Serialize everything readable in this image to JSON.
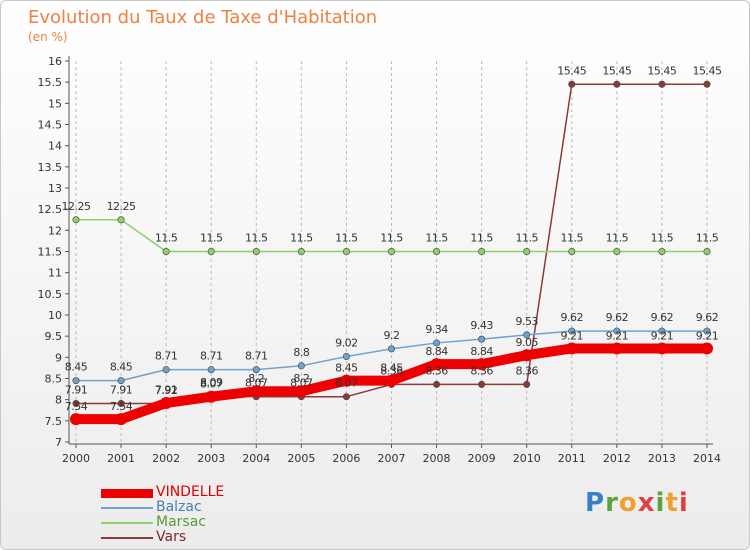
{
  "header": {
    "title": "Evolution du Taux de Taxe d'Habitation",
    "subtitle": "(en %)"
  },
  "colors": {
    "title": "#f08040",
    "axis": "#555555",
    "grid": "#bbbbbb",
    "logo_p": "#3a7fc8",
    "logo_r": "#5aa43a",
    "logo_o": "#f0a030",
    "logo_x": "#e04040",
    "logo_i": "#5aa43a",
    "logo_t": "#f0a030",
    "logo_i2": "#e04040"
  },
  "logo": {
    "letters": [
      "P",
      "r",
      "o",
      "x",
      "i",
      "t",
      "i"
    ]
  },
  "chart_data": {
    "type": "line",
    "title": "Evolution du Taux de Taxe d'Habitation",
    "ylabel": "(en %)",
    "xlabel": "",
    "x": [
      "2000",
      "2001",
      "2002",
      "2003",
      "2004",
      "2005",
      "2006",
      "2007",
      "2008",
      "2009",
      "2010",
      "2011",
      "2012",
      "2013",
      "2014"
    ],
    "ylim": [
      7,
      16
    ],
    "yticks": [
      "7",
      "7.5",
      "8",
      "8.5",
      "9",
      "9.5",
      "10",
      "10.5",
      "11",
      "11.5",
      "12",
      "12.5",
      "13",
      "13.5",
      "14",
      "14.5",
      "15",
      "15.5",
      "16"
    ],
    "grid": "vertical dashed lines at each x category",
    "legend_position": "bottom-left",
    "series": [
      {
        "name": "VINDELLE",
        "color": "#ee0000",
        "values": [
          7.54,
          7.54,
          7.92,
          8.07,
          8.2,
          8.2,
          8.45,
          8.45,
          8.84,
          8.84,
          9.05,
          9.21,
          9.21,
          9.21,
          9.21
        ],
        "labels": [
          "7.54",
          "7.54",
          "7.92",
          "8.07",
          "8.2",
          "8.2",
          "8.45",
          "8.45",
          "8.84",
          "8.84",
          "9.05",
          "9.21",
          "9.21",
          "9.21",
          "9.21"
        ]
      },
      {
        "name": "Balzac",
        "color": "#6fa3cf",
        "values": [
          8.45,
          8.45,
          8.71,
          8.71,
          8.71,
          8.8,
          9.02,
          9.2,
          9.34,
          9.43,
          9.53,
          9.62,
          9.62,
          9.62,
          9.62
        ],
        "labels": [
          "8.45",
          "8.45",
          "8.71",
          "8.71",
          "8.71",
          "8.8",
          "9.02",
          "9.2",
          "9.34",
          "9.43",
          "9.53",
          "9.62",
          "9.62",
          "9.62",
          "9.62"
        ]
      },
      {
        "name": "Marsac",
        "color": "#8ed16a",
        "values": [
          12.25,
          12.25,
          11.5,
          11.5,
          11.5,
          11.5,
          11.5,
          11.5,
          11.5,
          11.5,
          11.5,
          11.5,
          11.5,
          11.5,
          11.5
        ],
        "labels": [
          "12.25",
          "12.25",
          "11.5",
          "11.5",
          "11.5",
          "11.5",
          "11.5",
          "11.5",
          "11.5",
          "11.5",
          "11.5",
          "11.5",
          "11.5",
          "11.5",
          "11.5"
        ]
      },
      {
        "name": "Vars",
        "color": "#8b3a3a",
        "values": [
          7.91,
          7.91,
          7.91,
          8.09,
          8.07,
          8.07,
          8.07,
          8.36,
          8.36,
          8.36,
          8.36,
          15.45,
          15.45,
          15.45,
          15.45
        ],
        "labels": [
          "7.91",
          "7.91",
          "7.91",
          "8.09",
          "8.07",
          "8.07",
          "8.07",
          "8.36",
          "8.36",
          "8.36",
          "8.36",
          "15.45",
          "15.45",
          "15.45",
          "15.45"
        ]
      }
    ]
  }
}
